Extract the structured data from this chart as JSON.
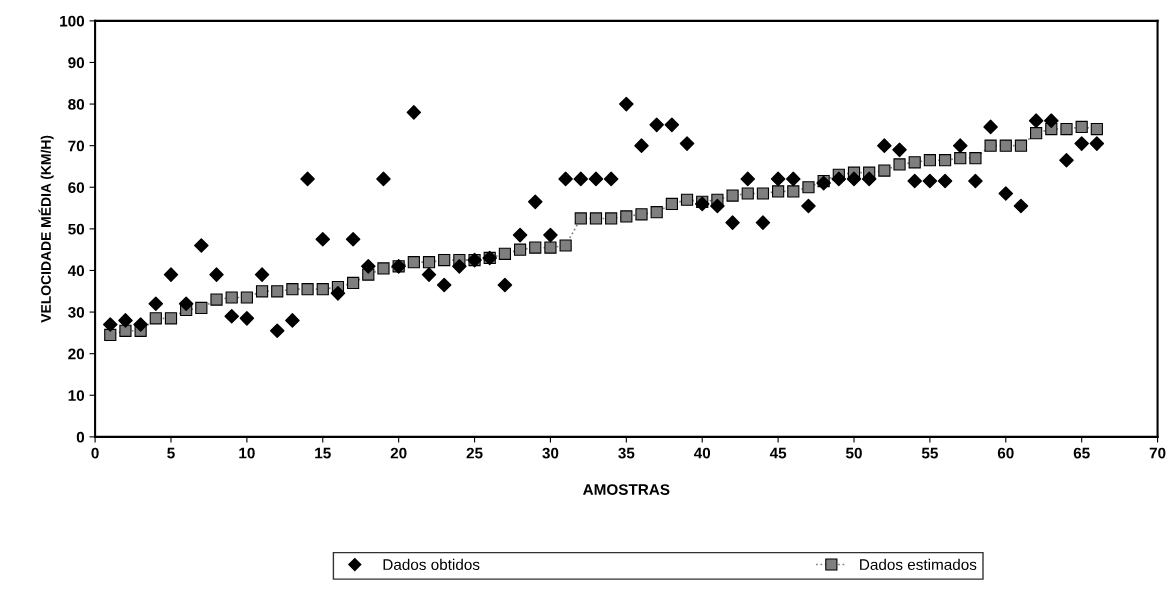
{
  "chart_data": {
    "type": "scatter",
    "xlabel": "AMOSTRAS",
    "ylabel": "VELOCIDADE MÉDIA (KM/H)",
    "x": [
      1,
      2,
      3,
      4,
      5,
      6,
      7,
      8,
      9,
      10,
      11,
      12,
      13,
      14,
      15,
      16,
      17,
      18,
      19,
      20,
      21,
      22,
      23,
      24,
      25,
      26,
      27,
      28,
      29,
      30,
      31,
      32,
      33,
      34,
      35,
      36,
      37,
      38,
      39,
      40,
      41,
      42,
      43,
      44,
      45,
      46,
      47,
      48,
      49,
      50,
      51,
      52,
      53,
      54,
      55,
      56,
      57,
      58,
      59,
      60,
      61,
      62,
      63,
      64,
      65,
      66
    ],
    "xlim": [
      0,
      70
    ],
    "xticks": [
      0,
      5,
      10,
      15,
      20,
      25,
      30,
      35,
      40,
      45,
      50,
      55,
      60,
      65,
      70
    ],
    "ylim": [
      0,
      100
    ],
    "yticks": [
      0,
      10,
      20,
      30,
      40,
      50,
      60,
      70,
      80,
      90,
      100
    ],
    "grid": false,
    "legend": "bottom",
    "series": [
      {
        "name": "Dados obtidos",
        "marker": "diamond",
        "color": "#000000",
        "values": [
          27,
          28,
          27,
          32,
          39,
          32,
          46,
          39,
          29,
          28.5,
          39,
          25.5,
          28,
          62,
          47.5,
          34.5,
          47.5,
          41,
          62,
          41,
          78,
          39,
          36.5,
          41,
          42.5,
          43,
          36.5,
          48.5,
          56.5,
          48.5,
          62,
          62,
          62,
          62,
          80,
          70,
          75,
          75,
          70.5,
          56,
          55.5,
          51.5,
          62,
          51.5,
          62,
          62,
          55.5,
          61,
          62,
          62,
          62,
          70,
          69,
          61.5,
          61.5,
          61.5,
          70,
          61.5,
          74.5,
          58.5,
          55.5,
          76,
          76,
          66.5,
          70.5,
          70.5
        ]
      },
      {
        "name": "Dados estimados",
        "type": "line",
        "marker": "square",
        "line_style": "dotted",
        "color": "#7f7f7f",
        "values": [
          24.5,
          25.5,
          25.5,
          28.5,
          28.5,
          30.5,
          31,
          33,
          33.5,
          33.5,
          35,
          35,
          35.5,
          35.5,
          35.5,
          36,
          37,
          39,
          40.5,
          41,
          42,
          42,
          42.5,
          42.5,
          42.5,
          43,
          44,
          45,
          45.5,
          45.5,
          46,
          52.5,
          52.5,
          52.5,
          53,
          53.5,
          54,
          56,
          57,
          56.5,
          57,
          58,
          58.5,
          58.5,
          59,
          59,
          60,
          61.5,
          63,
          63.5,
          63.5,
          64,
          65.5,
          66,
          66.5,
          66.5,
          67,
          67,
          70,
          70,
          70,
          73,
          74,
          74,
          74.5,
          74
        ]
      }
    ]
  }
}
